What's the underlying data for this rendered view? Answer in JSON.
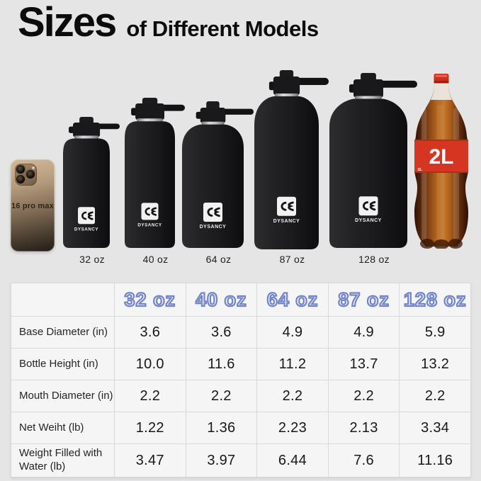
{
  "title": {
    "main": "Sizes",
    "sub": "of Different Models"
  },
  "brand": "DYSANCY",
  "lineup": {
    "phone": {
      "label": "16 pro max"
    },
    "bottles": [
      {
        "label": "32 oz"
      },
      {
        "label": "40 oz"
      },
      {
        "label": "64 oz"
      },
      {
        "label": "87 oz"
      },
      {
        "label": "128 oz"
      }
    ],
    "cola": {
      "label": "2L",
      "small_label": "2L"
    }
  },
  "table": {
    "columns": [
      "32 oz",
      "40 oz",
      "64 oz",
      "87 oz",
      "128 oz"
    ],
    "rows": [
      {
        "label": "Base Diameter (in)",
        "values": [
          "3.6",
          "3.6",
          "4.9",
          "4.9",
          "5.9"
        ]
      },
      {
        "label": "Bottle Height (in)",
        "values": [
          "10.0",
          "11.6",
          "11.2",
          "13.7",
          "13.2"
        ]
      },
      {
        "label": "Mouth Diameter (in)",
        "values": [
          "2.2",
          "2.2",
          "2.2",
          "2.2",
          "2.2"
        ]
      },
      {
        "label": "Net Weiht (lb)",
        "values": [
          "1.22",
          "1.36",
          "2.23",
          "2.13",
          "3.34"
        ]
      },
      {
        "label": "Weight Filled with Water (lb)",
        "values": [
          "3.47",
          "3.97",
          "6.44",
          "7.6",
          "11.16"
        ]
      }
    ]
  },
  "colors": {
    "background": "#e5e5e6",
    "table_background": "#f5f5f6",
    "table_border": "#d8d9db",
    "header_fill": "#eff2fa",
    "header_outline": "#7285c8",
    "bottle_black": "#1a1a1c",
    "cola_red": "#d63522",
    "text": "#17181a"
  }
}
